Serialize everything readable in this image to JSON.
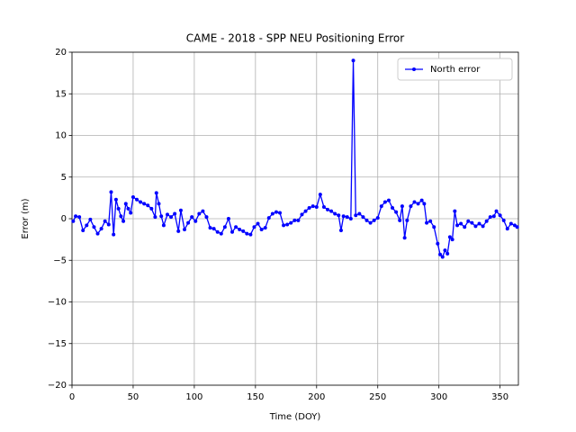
{
  "chart_data": {
    "type": "line",
    "title": "CAME - 2018 - SPP NEU Positioning Error",
    "x_label": "Time (DOY)",
    "y_label": "Error (m)",
    "xlim": [
      0,
      365
    ],
    "ylim": [
      -20,
      20
    ],
    "xticks": [
      0,
      50,
      100,
      150,
      200,
      250,
      300,
      350
    ],
    "yticks": [
      {
        "value": -20,
        "label": "−20"
      },
      {
        "value": -15,
        "label": "−15"
      },
      {
        "value": -10,
        "label": "−10"
      },
      {
        "value": -5,
        "label": "−5"
      },
      0,
      5,
      10,
      15,
      20
    ],
    "grid": true,
    "legend_position": "upper right",
    "x": [
      1,
      3,
      6,
      9,
      12,
      15,
      18,
      21,
      24,
      27,
      30,
      32,
      34,
      36,
      38,
      40,
      42,
      44,
      46,
      48,
      50,
      53,
      56,
      59,
      62,
      65,
      68,
      69,
      71,
      73,
      75,
      78,
      81,
      84,
      87,
      89,
      92,
      95,
      98,
      101,
      104,
      107,
      110,
      113,
      116,
      119,
      122,
      125,
      128,
      131,
      134,
      137,
      140,
      143,
      146,
      149,
      152,
      155,
      158,
      161,
      164,
      167,
      170,
      173,
      176,
      179,
      182,
      185,
      188,
      191,
      194,
      197,
      200,
      203,
      206,
      209,
      212,
      215,
      218,
      220,
      222,
      225,
      228,
      230,
      232,
      235,
      238,
      241,
      244,
      247,
      250,
      253,
      256,
      259,
      262,
      265,
      268,
      270,
      272,
      274,
      277,
      280,
      283,
      286,
      288,
      290,
      293,
      296,
      299,
      301,
      303,
      305,
      307,
      309,
      311,
      313,
      315,
      318,
      321,
      324,
      327,
      330,
      333,
      336,
      339,
      342,
      345,
      347,
      350,
      353,
      356,
      359,
      362,
      364
    ],
    "series": [
      {
        "name": "North error",
        "color": "#0000ff",
        "values": [
          -0.3,
          0.3,
          0.2,
          -1.4,
          -0.8,
          -0.1,
          -1.0,
          -1.8,
          -1.2,
          -0.3,
          -0.7,
          3.2,
          -1.9,
          2.3,
          1.2,
          0.3,
          -0.3,
          1.8,
          1.2,
          0.7,
          2.6,
          2.3,
          2.0,
          1.8,
          1.6,
          1.2,
          0.2,
          3.1,
          1.8,
          0.3,
          -0.8,
          0.5,
          0.2,
          0.6,
          -1.5,
          1.0,
          -1.3,
          -0.5,
          0.2,
          -0.3,
          0.6,
          0.9,
          0.2,
          -1.1,
          -1.2,
          -1.6,
          -1.8,
          -1.0,
          0.0,
          -1.6,
          -1.0,
          -1.3,
          -1.5,
          -1.8,
          -1.9,
          -1.0,
          -0.6,
          -1.3,
          -1.1,
          0.1,
          0.6,
          0.8,
          0.7,
          -0.8,
          -0.7,
          -0.5,
          -0.2,
          -0.2,
          0.5,
          0.9,
          1.3,
          1.5,
          1.4,
          2.9,
          1.4,
          1.1,
          0.9,
          0.6,
          0.4,
          -1.4,
          0.3,
          0.2,
          0.0,
          19.0,
          0.4,
          0.6,
          0.2,
          -0.2,
          -0.5,
          -0.2,
          0.1,
          1.5,
          2.0,
          2.2,
          1.3,
          0.8,
          -0.2,
          1.5,
          -2.3,
          -0.2,
          1.5,
          2.0,
          1.8,
          2.2,
          1.8,
          -0.5,
          -0.3,
          -1.0,
          -3.0,
          -4.3,
          -4.6,
          -3.8,
          -4.2,
          -2.2,
          -2.5,
          0.9,
          -0.8,
          -0.6,
          -1.0,
          -0.3,
          -0.5,
          -0.9,
          -0.6,
          -0.9,
          -0.3,
          0.2,
          0.3,
          0.9,
          0.4,
          -0.2,
          -1.2,
          -0.6,
          -0.8,
          -1.0
        ]
      }
    ]
  }
}
